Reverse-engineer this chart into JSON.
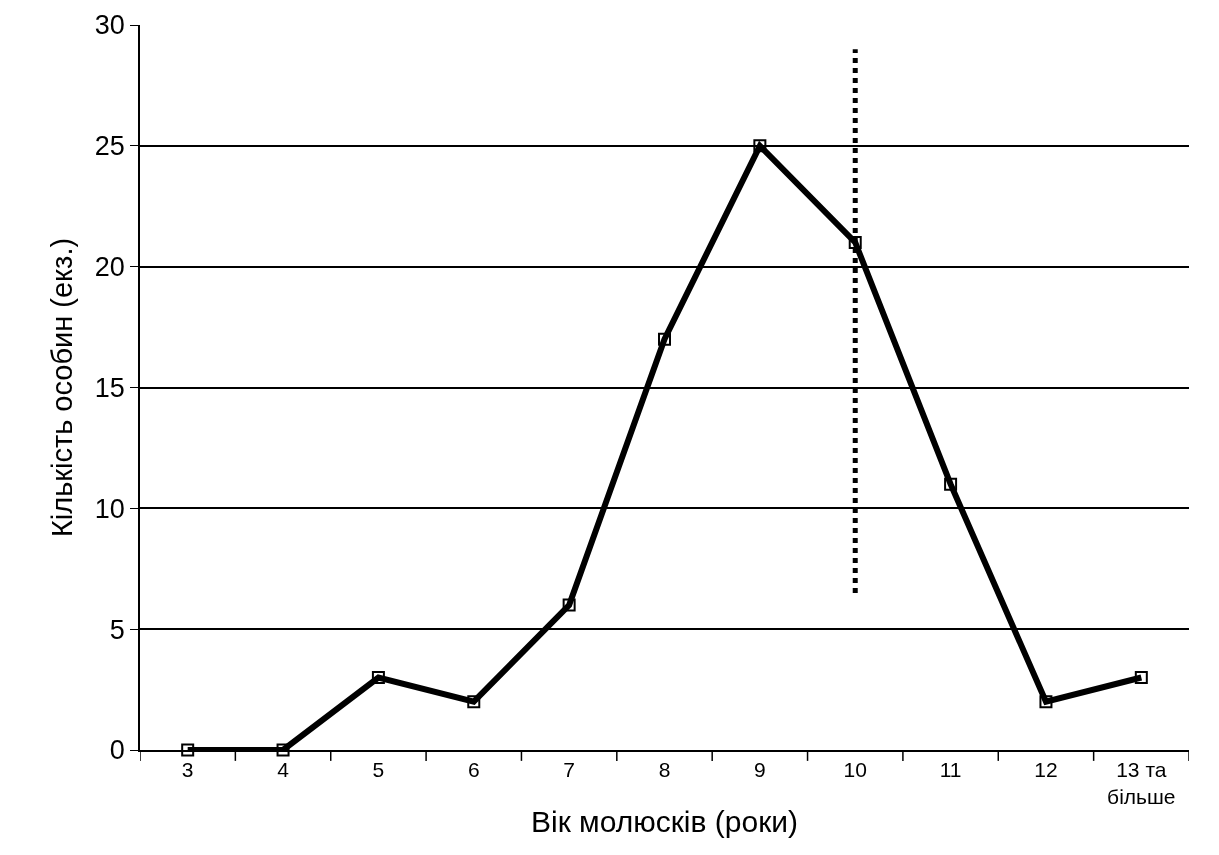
{
  "chart_data": {
    "type": "line",
    "xlabel": "Вік молюсків (роки)",
    "ylabel": "Кількість особин (екз.)",
    "categories": [
      "3",
      "4",
      "5",
      "6",
      "7",
      "8",
      "9",
      "10",
      "11",
      "12",
      "13 та більше"
    ],
    "series": [
      {
        "color": "#000000",
        "values": [
          0,
          0,
          3,
          2,
          6,
          17,
          25,
          21,
          11,
          2,
          3
        ],
        "marker": "square",
        "line_style": "solid"
      },
      {
        "type": "line",
        "color": "#000000",
        "x": [
          "10",
          "10"
        ],
        "values": [
          6.5,
          29
        ],
        "marker": "none",
        "line_style": "dotted"
      }
    ],
    "ylim": [
      0,
      30
    ],
    "yticks": [
      0,
      5,
      10,
      15,
      20,
      25,
      30
    ],
    "grid": "y"
  }
}
